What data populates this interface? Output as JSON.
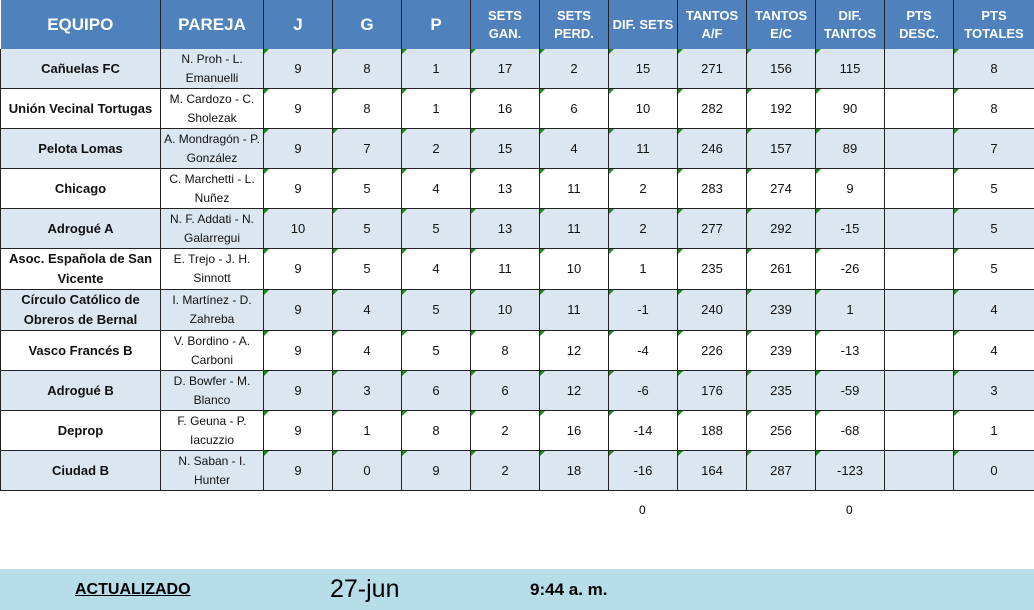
{
  "headers": [
    "EQUIPO",
    "PAREJA",
    "J",
    "G",
    "P",
    "SETS GAN.",
    "SETS PERD.",
    "DIF. SETS",
    "TANTOS A/F",
    "TANTOS E/C",
    "DIF. TANTOS",
    "PTS DESC.",
    "PTS TOTALES"
  ],
  "rows": [
    [
      "Cañuelas FC",
      "N. Proh - L. Emanuelli",
      "9",
      "8",
      "1",
      "17",
      "2",
      "15",
      "271",
      "156",
      "115",
      "",
      "8"
    ],
    [
      "Unión Vecinal Tortugas",
      "M. Cardozo - C. Sholezak",
      "9",
      "8",
      "1",
      "16",
      "6",
      "10",
      "282",
      "192",
      "90",
      "",
      "8"
    ],
    [
      "Pelota Lomas",
      "A. Mondragón - P. González",
      "9",
      "7",
      "2",
      "15",
      "4",
      "11",
      "246",
      "157",
      "89",
      "",
      "7"
    ],
    [
      "Chicago",
      "C. Marchetti - L. Nuñez",
      "9",
      "5",
      "4",
      "13",
      "11",
      "2",
      "283",
      "274",
      "9",
      "",
      "5"
    ],
    [
      "Adrogué A",
      "N. F. Addati - N. Galarregui",
      "10",
      "5",
      "5",
      "13",
      "11",
      "2",
      "277",
      "292",
      "-15",
      "",
      "5"
    ],
    [
      "Asoc. Española de San Vicente",
      "E. Trejo - J. H. Sinnott",
      "9",
      "5",
      "4",
      "11",
      "10",
      "1",
      "235",
      "261",
      "-26",
      "",
      "5"
    ],
    [
      "Círculo Católico de Obreros de Bernal",
      "I. Martínez - D. Zahreba",
      "9",
      "4",
      "5",
      "10",
      "11",
      "-1",
      "240",
      "239",
      "1",
      "",
      "4"
    ],
    [
      "Vasco Francés B",
      "V. Bordino - A. Carboni",
      "9",
      "4",
      "5",
      "8",
      "12",
      "-4",
      "226",
      "239",
      "-13",
      "",
      "4"
    ],
    [
      "Adrogué B",
      "D. Bowfer - M. Blanco",
      "9",
      "3",
      "6",
      "6",
      "12",
      "-6",
      "176",
      "235",
      "-59",
      "",
      "3"
    ],
    [
      "Deprop",
      "F. Geuna - P. Iacuzzio",
      "9",
      "1",
      "8",
      "2",
      "16",
      "-14",
      "188",
      "256",
      "-68",
      "",
      "1"
    ],
    [
      "Ciudad B",
      "N. Saban - I. Hunter",
      "9",
      "0",
      "9",
      "2",
      "18",
      "-16",
      "164",
      "287",
      "-123",
      "",
      "0"
    ]
  ],
  "totals": {
    "dif_sets": "0",
    "dif_tantos": "0"
  },
  "footer": {
    "label": "ACTUALIZADO",
    "date": "27-jun",
    "time": "9:44 a. m."
  },
  "colors": {
    "header": "#4f81bd",
    "row_alt": "#dce6f1",
    "footer": "#b7dde8"
  }
}
